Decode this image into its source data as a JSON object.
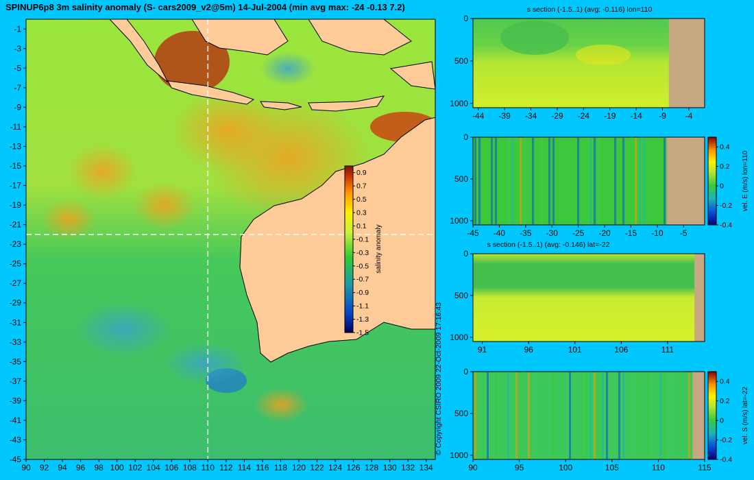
{
  "title": "SPINUP6p8 3m salinity anomaly (S- cars2009_v2@5m) 14-Jul-2004 (min avg max: -24 -0.13 7.2)",
  "copyright": "© Copyright CSIRO 2009    22-Oct-2009 17:16:43",
  "colors": {
    "background": "#00c8ff",
    "land": "#ffcc99",
    "section_land": "#c8a882"
  },
  "chart_data": [
    {
      "type": "heatmap",
      "id": "map",
      "title": "SPINUP6p8 3m salinity anomaly (S- cars2009_v2@5m) 14-Jul-2004 (min avg max: -24 -0.13 7.2)",
      "xlabel": "",
      "ylabel": "",
      "xlim": [
        90,
        135
      ],
      "ylim": [
        -45,
        0
      ],
      "x_ticks": [
        90,
        92,
        94,
        96,
        98,
        100,
        102,
        104,
        106,
        108,
        110,
        112,
        114,
        116,
        118,
        120,
        122,
        124,
        126,
        128,
        130,
        132,
        134
      ],
      "y_ticks": [
        -1,
        -3,
        -5,
        -7,
        -9,
        -11,
        -13,
        -15,
        -17,
        -19,
        -21,
        -23,
        -25,
        -27,
        -29,
        -31,
        -33,
        -35,
        -37,
        -39,
        -41,
        -43,
        -45
      ],
      "section_lines": {
        "lon": 110,
        "lat": -22
      },
      "colorbar": {
        "label": "salinity anomaly",
        "range": [
          -1.5,
          1.0
        ],
        "ticks": [
          0.9,
          0.7,
          0.5,
          0.3,
          0.1,
          -0.1,
          -0.3,
          -0.5,
          -0.7,
          -0.9,
          -1.1,
          -1.3,
          -1.5
        ]
      }
    },
    {
      "type": "heatmap",
      "id": "sec1",
      "title": "s section (-1.5..1) (avg: -0.116) lon=110",
      "xlim": [
        -45,
        -1
      ],
      "ylim": [
        1050,
        0
      ],
      "x_ticks": [
        -44,
        -39,
        -34,
        -29,
        -24,
        -19,
        -14,
        -9,
        -4
      ],
      "y_ticks": [
        0,
        500,
        1000
      ],
      "land_from": -7.8
    },
    {
      "type": "heatmap",
      "id": "sec2",
      "title": "",
      "xlim": [
        -45,
        -1
      ],
      "ylim": [
        1050,
        0
      ],
      "x_ticks": [
        -45,
        -40,
        -35,
        -30,
        -25,
        -20,
        -15,
        -10,
        -5
      ],
      "y_ticks": [
        0,
        500,
        1000
      ],
      "land_from": -8.2,
      "colorbar": {
        "label": "vel. E (m/s) lon=110",
        "range": [
          -0.4,
          0.5
        ],
        "ticks": [
          0.4,
          0.2,
          0,
          -0.2,
          -0.4
        ]
      }
    },
    {
      "type": "heatmap",
      "id": "sec3",
      "title": "s section (-1.5..1) (avg: -0.146) lat=-22",
      "xlim": [
        90,
        115
      ],
      "ylim": [
        1050,
        0
      ],
      "x_ticks": [
        91,
        96,
        101,
        106,
        111
      ],
      "y_ticks": [
        0,
        500,
        1000
      ],
      "land_from": 113.9
    },
    {
      "type": "heatmap",
      "id": "sec4",
      "title": "",
      "xlim": [
        90,
        115
      ],
      "ylim": [
        1050,
        0
      ],
      "x_ticks": [
        90,
        95,
        100,
        105,
        110,
        115
      ],
      "y_ticks": [
        0,
        500,
        1000
      ],
      "land_from": 113.7,
      "colorbar": {
        "label": "vel. S (m/s) lat=-22",
        "range": [
          -0.4,
          0.5
        ],
        "ticks": [
          0.4,
          0.2,
          0,
          -0.2,
          -0.4
        ]
      }
    }
  ]
}
